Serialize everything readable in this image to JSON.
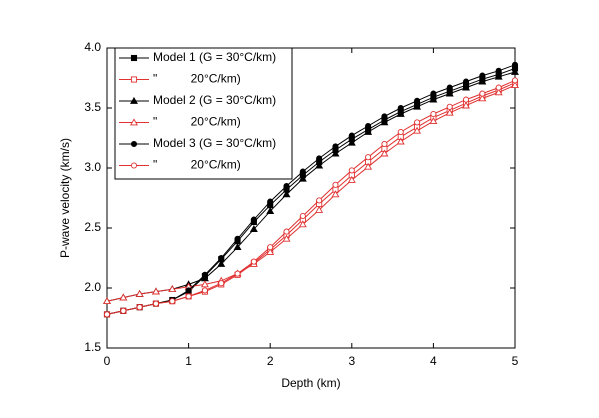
{
  "chart_data": {
    "type": "line",
    "xlabel": "Depth (km)",
    "ylabel": "P-wave velocity (km/s)",
    "x": [
      0,
      0.2,
      0.4,
      0.6,
      0.8,
      1.0,
      1.2,
      1.4,
      1.6,
      1.8,
      2.0,
      2.2,
      2.4,
      2.6,
      2.8,
      3.0,
      3.2,
      3.4,
      3.6,
      3.8,
      4.0,
      4.2,
      4.4,
      4.6,
      4.8,
      5.0
    ],
    "xlim": [
      0,
      5
    ],
    "xticks": [
      0,
      1,
      2,
      3,
      4,
      5
    ],
    "ylim": [
      1.5,
      4.0
    ],
    "yticks": [
      1.5,
      {
        "value": 2,
        "label": "2.0"
      },
      2.5,
      {
        "value": 3,
        "label": "3.0"
      },
      3.5,
      {
        "value": 4,
        "label": "4.0"
      }
    ],
    "legend": "top-left",
    "series": [
      {
        "name": "Model 1 (G = 30°C/km)",
        "color": "#000000",
        "marker": "square",
        "filled": true,
        "values": [
          1.78,
          1.81,
          1.84,
          1.87,
          1.9,
          1.97,
          2.1,
          2.24,
          2.39,
          2.55,
          2.69,
          2.82,
          2.94,
          3.05,
          3.15,
          3.24,
          3.32,
          3.4,
          3.47,
          3.53,
          3.59,
          3.64,
          3.69,
          3.74,
          3.78,
          3.83
        ]
      },
      {
        "name": "\"          20°C/km)",
        "color": "#e03030",
        "marker": "square",
        "filled": false,
        "values": [
          1.78,
          1.81,
          1.84,
          1.87,
          1.89,
          1.93,
          1.97,
          2.03,
          2.11,
          2.21,
          2.32,
          2.44,
          2.57,
          2.7,
          2.82,
          2.94,
          3.05,
          3.16,
          3.26,
          3.34,
          3.42,
          3.48,
          3.54,
          3.6,
          3.65,
          3.71
        ]
      },
      {
        "name": "Model 2 (G = 30°C/km)",
        "color": "#000000",
        "marker": "triangle",
        "filled": true,
        "values": [
          1.89,
          1.92,
          1.95,
          1.97,
          1.99,
          2.03,
          2.08,
          2.2,
          2.34,
          2.49,
          2.64,
          2.78,
          2.91,
          3.02,
          3.12,
          3.21,
          3.3,
          3.38,
          3.45,
          3.51,
          3.57,
          3.62,
          3.67,
          3.72,
          3.76,
          3.8
        ]
      },
      {
        "name": "\"          20°C/km)",
        "color": "#e03030",
        "marker": "triangle",
        "filled": false,
        "values": [
          1.89,
          1.92,
          1.95,
          1.97,
          1.99,
          2.01,
          2.03,
          2.06,
          2.12,
          2.2,
          2.3,
          2.41,
          2.53,
          2.65,
          2.78,
          2.9,
          3.01,
          3.12,
          3.22,
          3.31,
          3.39,
          3.46,
          3.52,
          3.58,
          3.63,
          3.69
        ]
      },
      {
        "name": "Model 3 (G = 30°C/km)",
        "color": "#000000",
        "marker": "circle",
        "filled": true,
        "values": [
          1.78,
          1.81,
          1.84,
          1.87,
          1.9,
          1.98,
          2.11,
          2.25,
          2.41,
          2.57,
          2.72,
          2.85,
          2.97,
          3.08,
          3.18,
          3.27,
          3.35,
          3.43,
          3.5,
          3.56,
          3.62,
          3.67,
          3.72,
          3.77,
          3.81,
          3.86
        ]
      },
      {
        "name": "\"          20°C/km)",
        "color": "#e03030",
        "marker": "circle",
        "filled": false,
        "values": [
          1.78,
          1.81,
          1.84,
          1.87,
          1.89,
          1.93,
          1.98,
          2.04,
          2.12,
          2.22,
          2.34,
          2.47,
          2.6,
          2.73,
          2.86,
          2.98,
          3.09,
          3.2,
          3.3,
          3.38,
          3.45,
          3.51,
          3.57,
          3.62,
          3.67,
          3.73
        ]
      }
    ]
  }
}
